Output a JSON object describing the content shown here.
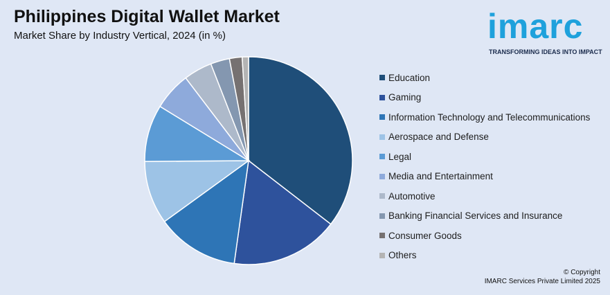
{
  "header": {
    "title": "Philippines Digital Wallet Market",
    "subtitle": "Market Share by Industry Vertical, 2024 (in %)"
  },
  "logo": {
    "word": "imarc",
    "tagline": "TRANSFORMING IDEAS INTO IMPACT",
    "color": "#1ea1dc"
  },
  "footer": {
    "line1": "© Copyright",
    "line2": "IMARC Services Private Limited 2025"
  },
  "chart_data": {
    "type": "pie",
    "legend_position": "right",
    "categories": [
      "Education",
      "Gaming",
      "Information Technology and Telecommunications",
      "Aerospace and Defense",
      "Legal",
      "Media and Entertainment",
      "Automotive",
      "Banking Financial Services and Insurance",
      "Consumer Goods",
      "Others"
    ],
    "values": [
      36,
      17,
      13,
      10,
      9,
      6,
      4.5,
      3,
      2,
      1
    ],
    "colors": [
      "#1f4e79",
      "#2e529c",
      "#2e75b6",
      "#9dc3e6",
      "#5b9bd5",
      "#8eaadb",
      "#adb9ca",
      "#8497b0",
      "#767171",
      "#b4b4b4"
    ]
  }
}
